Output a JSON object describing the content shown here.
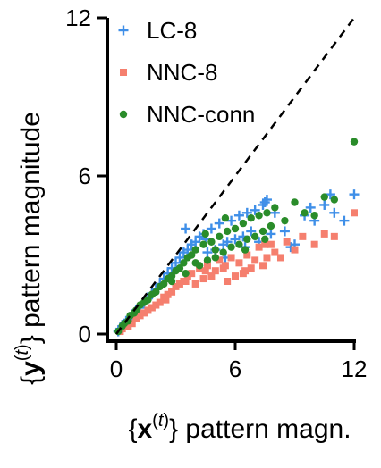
{
  "chart_data": {
    "type": "scatter",
    "xlabel": {
      "brace_open": "{",
      "bold": "x",
      "sup_open": "(",
      "sup": "t",
      "sup_close": ")",
      "brace_close": "}",
      "rest": " pattern magn."
    },
    "ylabel": {
      "brace_open": "{",
      "bold": "y",
      "sup_open": "(",
      "sup": "t",
      "sup_close": ")",
      "brace_close": "}",
      "rest": " pattern magnitude"
    },
    "xlim": [
      0,
      12
    ],
    "ylim": [
      0,
      12
    ],
    "xticks": [
      "0",
      "6",
      "12"
    ],
    "yticks": [
      "0",
      "6",
      "12"
    ],
    "reference_line": {
      "from": [
        0,
        0
      ],
      "to": [
        12,
        12
      ],
      "style": "dashed"
    },
    "legend_placement": "top-left",
    "grid": false,
    "series": [
      {
        "name": "LC-8",
        "marker": "plus",
        "color": "#3f8fe8",
        "x": [
          0.1,
          0.2,
          0.3,
          0.4,
          0.5,
          0.6,
          0.7,
          0.8,
          0.9,
          1.0,
          1.2,
          1.4,
          1.6,
          1.8,
          2.0,
          2.2,
          2.4,
          2.6,
          2.8,
          3.0,
          3.2,
          3.4,
          3.6,
          3.8,
          4.0,
          4.2,
          4.4,
          4.6,
          4.8,
          5.0,
          5.2,
          5.4,
          5.6,
          5.8,
          6.0,
          6.2,
          6.4,
          6.6,
          6.8,
          7.0,
          7.2,
          7.4,
          7.6,
          7.8,
          8.0,
          8.5,
          9.0,
          9.5,
          10.0,
          10.5,
          11.0,
          11.5,
          12.0,
          3.5,
          4.5,
          5.5,
          6.5,
          7.5,
          8.8,
          9.8,
          10.8
        ],
        "y": [
          0.1,
          0.2,
          0.3,
          0.4,
          0.5,
          0.5,
          0.6,
          0.7,
          0.8,
          0.9,
          1.0,
          1.2,
          1.4,
          1.5,
          1.7,
          1.9,
          2.1,
          2.3,
          2.5,
          2.7,
          2.9,
          3.1,
          3.2,
          3.4,
          3.5,
          3.7,
          3.8,
          3.1,
          4.0,
          3.2,
          4.2,
          3.4,
          3.5,
          4.3,
          3.6,
          4.5,
          3.7,
          4.6,
          3.9,
          4.7,
          3.5,
          4.9,
          5.1,
          3.8,
          4.6,
          3.9,
          3.4,
          4.5,
          4.3,
          4.9,
          4.6,
          4.3,
          5.3,
          4.0,
          3.6,
          2.9,
          3.3,
          5.0,
          3.3,
          4.8,
          5.3
        ]
      },
      {
        "name": "NNC-8",
        "marker": "square",
        "color": "#f57f6e",
        "x": [
          0.2,
          0.3,
          0.5,
          0.6,
          0.8,
          1.0,
          1.2,
          1.4,
          1.6,
          1.8,
          2.0,
          2.2,
          2.4,
          2.6,
          2.8,
          3.0,
          3.2,
          3.4,
          3.6,
          3.8,
          4.0,
          4.2,
          4.4,
          4.6,
          4.8,
          5.0,
          5.2,
          5.4,
          5.6,
          5.8,
          6.0,
          6.2,
          6.4,
          6.6,
          6.8,
          7.0,
          7.2,
          7.4,
          7.6,
          7.8,
          8.0,
          8.3,
          8.6,
          9.0,
          9.4,
          10.0,
          10.5,
          11.0,
          12.0,
          2.5,
          3.5,
          4.5,
          5.5,
          6.5,
          7.5
        ],
        "y": [
          0.1,
          0.2,
          0.3,
          0.3,
          0.4,
          0.6,
          0.7,
          0.8,
          0.9,
          1.0,
          1.1,
          1.2,
          1.4,
          1.5,
          1.6,
          1.8,
          1.9,
          2.0,
          2.2,
          2.3,
          1.9,
          2.5,
          2.1,
          2.6,
          2.2,
          2.4,
          2.8,
          2.5,
          2.0,
          2.9,
          2.2,
          2.7,
          2.3,
          3.0,
          2.5,
          2.8,
          3.3,
          2.6,
          2.9,
          3.4,
          3.1,
          2.9,
          3.5,
          3.2,
          3.7,
          3.4,
          3.8,
          3.7,
          4.6,
          1.3,
          2.0,
          2.4,
          2.6,
          2.4,
          3.4
        ]
      },
      {
        "name": "NNC-conn",
        "marker": "circle",
        "color": "#2a8c2a",
        "x": [
          0.1,
          0.3,
          0.4,
          0.6,
          0.7,
          0.9,
          1.0,
          1.2,
          1.4,
          1.6,
          1.8,
          2.0,
          2.2,
          2.4,
          2.6,
          2.8,
          3.0,
          3.2,
          3.4,
          3.6,
          3.8,
          4.0,
          4.2,
          4.4,
          4.6,
          4.8,
          5.0,
          5.2,
          5.4,
          5.6,
          5.8,
          6.0,
          6.2,
          6.4,
          6.6,
          6.8,
          7.0,
          7.2,
          7.4,
          7.6,
          7.8,
          8.0,
          8.5,
          9.0,
          9.5,
          10.0,
          10.5,
          11.0,
          12.0,
          3.5,
          4.5,
          5.5,
          6.5,
          7.5,
          2.8,
          4.0,
          5.0
        ],
        "y": [
          0.1,
          0.3,
          0.4,
          0.5,
          0.7,
          0.8,
          0.9,
          1.1,
          1.2,
          1.3,
          1.5,
          1.6,
          1.8,
          1.9,
          2.1,
          2.2,
          2.4,
          2.5,
          2.7,
          2.9,
          3.0,
          3.2,
          2.6,
          3.4,
          2.8,
          3.5,
          2.9,
          3.7,
          3.1,
          3.9,
          3.3,
          4.0,
          3.4,
          4.2,
          3.6,
          4.4,
          3.7,
          4.5,
          3.9,
          4.6,
          4.1,
          4.8,
          4.3,
          5.0,
          4.6,
          4.5,
          5.2,
          5.1,
          7.3,
          2.3,
          3.8,
          4.4,
          3.2,
          3.6,
          2.0,
          2.7,
          3.2
        ]
      }
    ]
  }
}
